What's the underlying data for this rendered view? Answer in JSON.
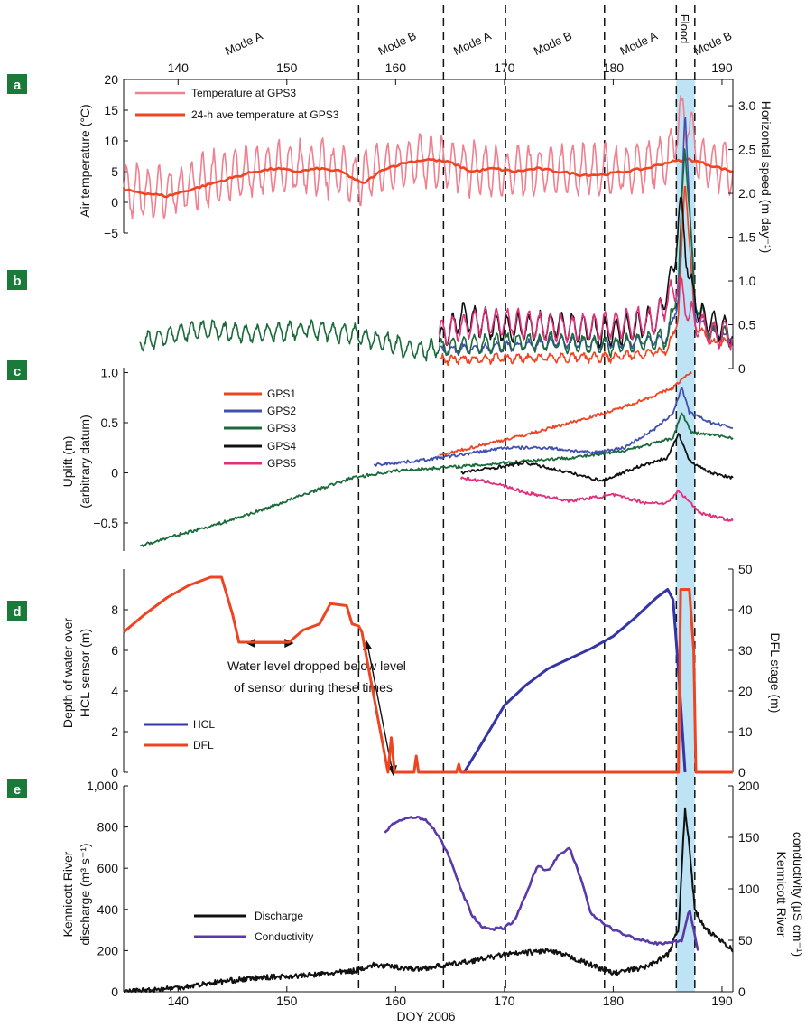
{
  "figure": {
    "xlabel": "DOY 2006",
    "x_ticks": [
      140,
      150,
      160,
      170,
      180,
      190
    ],
    "xlim": [
      135,
      191
    ],
    "mode_boundaries": [
      156.6,
      164.4,
      170.1,
      179.2,
      185.8,
      187.5
    ],
    "mode_labels": [
      {
        "text": "Mode A",
        "x": 146.2
      },
      {
        "text": "Mode B",
        "x": 160.3
      },
      {
        "text": "Mode A",
        "x": 167.2
      },
      {
        "text": "Mode B",
        "x": 174.6
      },
      {
        "text": "Mode A",
        "x": 182.5
      },
      {
        "text": "Flood",
        "x": 186.6
      },
      {
        "text": "Mode B",
        "x": 189.3
      }
    ],
    "flood_band": [
      185.8,
      187.5
    ],
    "flood_color": "#bde3f5"
  },
  "chart_data": [
    {
      "panel": "a",
      "type": "line",
      "ylabel": "Air temperature (°C)",
      "ylim": [
        -5,
        20
      ],
      "y_ticks": [
        "−5",
        "0",
        "5",
        "10",
        "15",
        "20"
      ],
      "series": [
        {
          "name": "Temperature at GPS3",
          "color": "#f08090",
          "x": [
            135,
            138,
            141,
            144,
            147,
            150,
            153,
            156,
            159,
            162,
            165,
            168,
            171,
            174,
            177,
            180,
            183,
            185,
            186.5,
            188,
            190,
            191
          ],
          "y": [
            2,
            1.5,
            2.5,
            4,
            5,
            5.5,
            6,
            4,
            5.5,
            7,
            6,
            5.5,
            5,
            5.5,
            5,
            5,
            6,
            7,
            15,
            6,
            6,
            5
          ],
          "amplitude": 4
        },
        {
          "name": "24-h ave temperature at GPS3",
          "color": "#ee4422",
          "x": [
            135,
            137,
            139,
            141,
            143,
            145,
            147,
            149,
            151,
            153,
            155,
            157,
            159,
            161,
            163,
            165,
            167,
            169,
            171,
            173,
            175,
            177,
            179,
            181,
            183,
            185,
            187,
            189,
            191
          ],
          "y": [
            2,
            1.5,
            1,
            2,
            3,
            4,
            5,
            5.5,
            5,
            5.5,
            5,
            3,
            5.5,
            6.5,
            7,
            6.5,
            5,
            5.5,
            5,
            5.5,
            5,
            4.5,
            4.5,
            5,
            5.5,
            6.5,
            7,
            6,
            5
          ]
        }
      ]
    },
    {
      "panel": "b",
      "type": "line",
      "ylabel": "Horizontal speed (m day⁻¹)",
      "ylim": [
        0,
        3.3
      ],
      "y_ticks": [
        "0",
        "0.5",
        "1.0",
        "1.5",
        "2.0",
        "2.5",
        "3.0"
      ],
      "series": [
        {
          "name": "GPS1",
          "color": "#ee4422",
          "amplitude": 0.04,
          "x": [
            164,
            170,
            175,
            180,
            185,
            186,
            186.6,
            187.5,
            189,
            191
          ],
          "y": [
            0.1,
            0.12,
            0.12,
            0.13,
            0.2,
            0.6,
            2.2,
            0.5,
            0.3,
            0.3
          ]
        },
        {
          "name": "GPS2",
          "color": "#4050b0",
          "amplitude": 0.05,
          "x": [
            164,
            170,
            175,
            180,
            185,
            186,
            186.6,
            187.5,
            189,
            191
          ],
          "y": [
            0.2,
            0.25,
            0.3,
            0.28,
            0.35,
            0.8,
            3.0,
            0.6,
            0.4,
            0.35
          ]
        },
        {
          "name": "GPS3",
          "color": "#1b6b3a",
          "amplitude": 0.1,
          "x": [
            136.5,
            142,
            147,
            152,
            156,
            159,
            162,
            165,
            170,
            175,
            180,
            185,
            186,
            186.6,
            187.5,
            189,
            191
          ],
          "y": [
            0.3,
            0.45,
            0.4,
            0.45,
            0.4,
            0.3,
            0.2,
            0.25,
            0.3,
            0.3,
            0.25,
            0.35,
            1.0,
            2.6,
            0.8,
            0.4,
            0.35
          ]
        },
        {
          "name": "GPS4",
          "color": "#111111",
          "amplitude": 0.15,
          "x": [
            164,
            166,
            170,
            175,
            180,
            184,
            185.5,
            186.2,
            187,
            188,
            191
          ],
          "y": [
            0.3,
            0.6,
            0.45,
            0.5,
            0.4,
            0.55,
            1.1,
            1.9,
            1.0,
            0.6,
            0.4
          ]
        },
        {
          "name": "GPS5",
          "color": "#e0307a",
          "amplitude": 0.15,
          "x": [
            164,
            168,
            172,
            176,
            180,
            184,
            186,
            187,
            189,
            191
          ],
          "y": [
            0.4,
            0.55,
            0.5,
            0.45,
            0.5,
            0.55,
            1.0,
            0.6,
            0.4,
            0.4
          ]
        }
      ]
    },
    {
      "panel": "c",
      "type": "line",
      "ylabel": "Uplift (m)",
      "ylabel2": "(arbitrary datum)",
      "ylim": [
        -0.78,
        1.05
      ],
      "y_ticks": [
        "−0.5",
        "0",
        "0.5",
        "1.0"
      ],
      "series": [
        {
          "name": "GPS1",
          "color": "#ee4422",
          "x": [
            164,
            168,
            172,
            176,
            180,
            184,
            185.5,
            186.5,
            187.2
          ],
          "y": [
            0.17,
            0.28,
            0.38,
            0.5,
            0.62,
            0.78,
            0.85,
            0.95,
            1.0
          ]
        },
        {
          "name": "GPS2",
          "color": "#4050b0",
          "x": [
            158,
            162,
            166,
            170,
            174,
            178,
            181,
            184,
            185.5,
            186.3,
            187,
            189,
            191
          ],
          "y": [
            0.08,
            0.12,
            0.18,
            0.25,
            0.25,
            0.2,
            0.25,
            0.45,
            0.6,
            0.85,
            0.6,
            0.5,
            0.45
          ]
        },
        {
          "name": "GPS3",
          "color": "#1b6b3a",
          "x": [
            136.5,
            140,
            144,
            148,
            152,
            156,
            160,
            164,
            168,
            172,
            176,
            180,
            184,
            185.5,
            186.3,
            187.2,
            189,
            191
          ],
          "y": [
            -0.73,
            -0.62,
            -0.5,
            -0.36,
            -0.2,
            -0.05,
            0.02,
            0.05,
            0.08,
            0.12,
            0.15,
            0.2,
            0.3,
            0.35,
            0.6,
            0.4,
            0.38,
            0.35
          ]
        },
        {
          "name": "GPS4",
          "color": "#111111",
          "x": [
            166,
            169,
            172,
            176,
            179,
            182,
            185,
            186,
            187,
            189,
            191
          ],
          "y": [
            0.0,
            0.05,
            0.1,
            0.0,
            -0.08,
            0.05,
            0.15,
            0.4,
            0.12,
            0.0,
            -0.05
          ]
        },
        {
          "name": "GPS5",
          "color": "#e0307a",
          "x": [
            166,
            169,
            172,
            176,
            180,
            183,
            185,
            186,
            188,
            191
          ],
          "y": [
            -0.05,
            -0.1,
            -0.2,
            -0.28,
            -0.22,
            -0.3,
            -0.3,
            -0.18,
            -0.4,
            -0.48
          ]
        }
      ]
    },
    {
      "panel": "d",
      "type": "line",
      "ylabel": "Depth of water over",
      "ylabel2": "HCL sensor (m)",
      "ylim": [
        0,
        10
      ],
      "y_ticks": [
        "0",
        "2",
        "4",
        "6",
        "8"
      ],
      "y2label": "DFL  stage (m)",
      "y2lim": [
        0,
        50
      ],
      "y2_ticks": [
        "0",
        "10",
        "20",
        "30",
        "40",
        "50"
      ],
      "annotation": [
        "Water level dropped below level",
        "of sensor during these times"
      ],
      "series": [
        {
          "name": "HCL",
          "color": "#3535a8",
          "axis": "left",
          "x": [
            166.3,
            168,
            170,
            172,
            174,
            176,
            178,
            180,
            182,
            184,
            185,
            185.5,
            186.0,
            186.6
          ],
          "y": [
            0,
            1.5,
            3.3,
            4.3,
            5.1,
            5.6,
            6.1,
            6.7,
            7.6,
            8.6,
            9.0,
            8.5,
            5.0,
            0
          ]
        },
        {
          "name": "DFL",
          "color": "#ee4422",
          "axis": "left",
          "x": [
            135,
            137,
            139,
            141,
            143,
            144,
            145,
            145.6,
            146.1,
            150.2,
            151.5,
            153,
            154,
            155.5,
            156,
            156.6,
            156.9,
            157.1,
            159.3,
            159.6,
            159.9,
            160.4,
            161.7,
            161.9,
            162.1,
            165.6,
            165.8,
            166.0,
            186.0,
            186.2,
            187.0,
            187.4,
            187.6,
            191
          ],
          "y": [
            6.9,
            7.8,
            8.6,
            9.2,
            9.6,
            9.6,
            7.8,
            6.4,
            6.4,
            6.4,
            7.0,
            7.3,
            8.3,
            8.2,
            7.3,
            7.2,
            6.9,
            6.3,
            0,
            1.7,
            0,
            0,
            0,
            0.8,
            0,
            0,
            0.4,
            0,
            0,
            9.0,
            9.0,
            6.0,
            0,
            0
          ]
        }
      ]
    },
    {
      "panel": "e",
      "type": "line",
      "ylabel": "Kennicott River",
      "ylabel2": "discharge (m³ s⁻¹)",
      "ylim": [
        0,
        1000
      ],
      "y_ticks": [
        "0",
        "200",
        "400",
        "600",
        "800",
        "1,000"
      ],
      "y2label": "Kennicott River",
      "y2label2": "conductivity (μS cm⁻¹)",
      "y2lim": [
        0,
        200
      ],
      "y2_ticks": [
        "0",
        "50",
        "100",
        "150",
        "200"
      ],
      "series": [
        {
          "name": "Discharge",
          "color": "#111111",
          "axis": "left",
          "x": [
            135,
            140,
            144,
            148,
            152,
            156,
            158,
            162,
            166,
            170,
            174,
            176,
            178,
            180,
            183,
            185,
            186,
            186.6,
            187.0,
            187.5,
            188.5,
            190,
            191
          ],
          "y": [
            0,
            20,
            50,
            70,
            80,
            100,
            130,
            110,
            140,
            180,
            200,
            170,
            130,
            90,
            120,
            180,
            300,
            900,
            700,
            400,
            300,
            250,
            200
          ]
        },
        {
          "name": "Conductivity",
          "color": "#5a3aa8",
          "axis": "right",
          "x": [
            159,
            160,
            161,
            162,
            163,
            164,
            165,
            166,
            167,
            168,
            169,
            170,
            171,
            172,
            173,
            174,
            175,
            176,
            177,
            178,
            180,
            182,
            184,
            185.5,
            186.3,
            187.0,
            187.8
          ],
          "y": [
            155,
            165,
            168,
            170,
            165,
            150,
            130,
            100,
            75,
            62,
            61,
            62,
            70,
            95,
            122,
            118,
            132,
            140,
            110,
            75,
            60,
            52,
            47,
            48,
            50,
            80,
            40
          ]
        }
      ]
    }
  ]
}
